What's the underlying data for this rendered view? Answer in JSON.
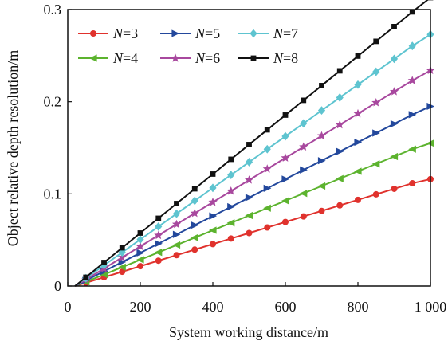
{
  "chart_data": {
    "type": "line",
    "xlabel": "System working distance/m",
    "ylabel": "Object relative depth resolution/m",
    "xlim": [
      0,
      1000
    ],
    "ylim": [
      0,
      0.3
    ],
    "x_ticks": [
      0,
      200,
      400,
      600,
      800,
      1000
    ],
    "x_tick_labels": [
      "0",
      "200",
      "400",
      "600",
      "800",
      "1 000"
    ],
    "y_ticks": [
      0,
      0.1,
      0.2,
      0.3
    ],
    "y_tick_labels": [
      "0",
      "0.1",
      "0.2",
      "0.3"
    ],
    "grid": false,
    "legend": {
      "placement": "top-left",
      "columns": 3
    },
    "x": [
      20,
      50,
      100,
      150,
      200,
      250,
      300,
      350,
      400,
      450,
      500,
      550,
      600,
      650,
      700,
      750,
      800,
      850,
      900,
      950,
      1000
    ],
    "series": [
      {
        "name": "N=3",
        "label_italic": "N",
        "label_rest": "=3",
        "color": "#e0322d",
        "marker": "circle",
        "values": [
          0.0,
          0.0035,
          0.0095,
          0.0155,
          0.0215,
          0.0275,
          0.0335,
          0.0395,
          0.0455,
          0.0515,
          0.0575,
          0.0635,
          0.0695,
          0.0755,
          0.0815,
          0.0875,
          0.0935,
          0.0995,
          0.1055,
          0.1115,
          0.116
        ]
      },
      {
        "name": "N=4",
        "label_italic": "N",
        "label_rest": "=4",
        "color": "#5cb32e",
        "marker": "triangle-left",
        "values": [
          0.0,
          0.0045,
          0.0125,
          0.0205,
          0.0285,
          0.0365,
          0.0445,
          0.0525,
          0.0605,
          0.0685,
          0.0765,
          0.0845,
          0.0925,
          0.1005,
          0.1085,
          0.1165,
          0.1245,
          0.1325,
          0.1405,
          0.1485,
          0.155
        ]
      },
      {
        "name": "N=5",
        "label_italic": "N",
        "label_rest": "=5",
        "color": "#23489c",
        "marker": "triangle-right",
        "values": [
          0.0,
          0.006,
          0.016,
          0.026,
          0.036,
          0.046,
          0.056,
          0.066,
          0.076,
          0.086,
          0.096,
          0.106,
          0.116,
          0.126,
          0.136,
          0.146,
          0.156,
          0.166,
          0.176,
          0.186,
          0.195
        ]
      },
      {
        "name": "N=6",
        "label_italic": "N",
        "label_rest": "=6",
        "color": "#a8489e",
        "marker": "star",
        "values": [
          0.0,
          0.007,
          0.019,
          0.031,
          0.043,
          0.055,
          0.067,
          0.079,
          0.091,
          0.103,
          0.115,
          0.127,
          0.139,
          0.151,
          0.163,
          0.175,
          0.187,
          0.199,
          0.211,
          0.223,
          0.234
        ]
      },
      {
        "name": "N=7",
        "label_italic": "N",
        "label_rest": "=7",
        "color": "#5ec4d0",
        "marker": "diamond",
        "values": [
          0.0,
          0.0085,
          0.0225,
          0.0365,
          0.0505,
          0.0645,
          0.0785,
          0.0925,
          0.1065,
          0.1205,
          0.1345,
          0.1485,
          0.1625,
          0.1765,
          0.1905,
          0.2045,
          0.2185,
          0.2325,
          0.2465,
          0.2605,
          0.273
        ]
      },
      {
        "name": "N=8",
        "label_italic": "N",
        "label_rest": "=8",
        "color": "#111111",
        "marker": "square",
        "values": [
          0.0,
          0.0095,
          0.0255,
          0.0415,
          0.0575,
          0.0735,
          0.0895,
          0.1055,
          0.1215,
          0.1375,
          0.1535,
          0.1695,
          0.1855,
          0.2015,
          0.2175,
          0.2335,
          0.2495,
          0.2655,
          0.2815,
          0.2975,
          0.313
        ]
      }
    ]
  }
}
